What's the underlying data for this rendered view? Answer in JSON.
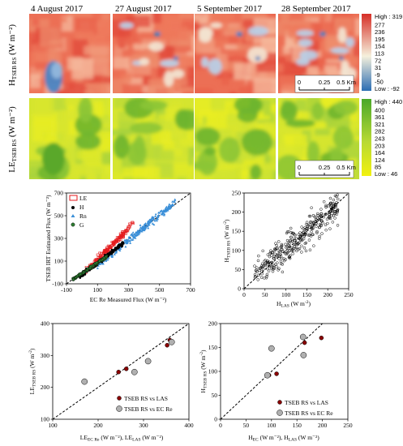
{
  "maps": {
    "dates": [
      "4 August 2017",
      "27 August 2017",
      "5 September 2017",
      "28 September 2017"
    ],
    "rows": [
      {
        "label_main": "H",
        "label_sub": "TSEB RS",
        "label_unit": " (W m⁻²)",
        "high_label": "High : 319",
        "low_label": "Low : -92",
        "ticks": [
          "277",
          "236",
          "195",
          "154",
          "113",
          "72",
          "31",
          "-9",
          "-50"
        ],
        "colors": [
          "#2b6db3",
          "#f5f0dc",
          "#d62f27"
        ]
      },
      {
        "label_main": "LE",
        "label_sub": "TSEB RS",
        "label_unit": " (W m⁻²)",
        "high_label": "High : 440",
        "low_label": "Low : 46",
        "ticks": [
          "400",
          "361",
          "321",
          "282",
          "243",
          "203",
          "164",
          "124",
          "85"
        ],
        "colors": [
          "#f2f10f",
          "#b7d934",
          "#4aa82a"
        ]
      }
    ],
    "scale_ticks": [
      "0",
      "0.25",
      "0.5 Km"
    ]
  },
  "chart_data": [
    {
      "type": "scatter",
      "xlabel": "EC Re Measured Flux (W m⁻²)",
      "ylabel": "TSEB IRT Estimated Flux (W m⁻²)",
      "xlim": [
        -100,
        700
      ],
      "ylim": [
        -100,
        700
      ],
      "xticks": [
        "-100",
        "100",
        "300",
        "500",
        "700"
      ],
      "yticks": [
        "-100",
        "100",
        "300",
        "500",
        "700"
      ],
      "legend": [
        "LE",
        "H",
        "Rn",
        "G"
      ],
      "legend_position": "top-left",
      "series_colors": {
        "LE": "#e41a1c",
        "H": "#000000",
        "Rn": "#3a8fd8",
        "G": "#2e7d32"
      },
      "one_to_one_line": true,
      "series_ranges": {
        "LE": {
          "x": [
            20,
            330
          ],
          "y": [
            0,
            430
          ]
        },
        "H": {
          "x": [
            -20,
            270
          ],
          "y": [
            -40,
            260
          ]
        },
        "Rn": {
          "x": [
            100,
            600
          ],
          "y": [
            60,
            620
          ]
        },
        "G": {
          "x": [
            -60,
            160
          ],
          "y": [
            -60,
            140
          ]
        }
      }
    },
    {
      "type": "scatter",
      "xlabel": "H_LAS (W m⁻²)",
      "ylabel": "H_TSEB RS (W m⁻²)",
      "xlim": [
        0,
        250
      ],
      "ylim": [
        0,
        250
      ],
      "xticks": [
        "0",
        "50",
        "100",
        "150",
        "200",
        "250"
      ],
      "yticks": [
        "0",
        "50",
        "100",
        "150",
        "200",
        "250"
      ],
      "marker": "open circle",
      "one_to_one_line": true,
      "point_count": 330
    },
    {
      "type": "scatter",
      "xlabel_main": "LE",
      "xlabel_sub1": "EC Re",
      "xlabel_mid": " (W m⁻²), LE",
      "xlabel_sub2": "LAS",
      "xlabel_end": " (W m⁻²)",
      "ylabel": "LE_TSEB RS (W m⁻²)",
      "xlim": [
        100,
        400
      ],
      "ylim": [
        100,
        400
      ],
      "xticks": [
        "100",
        "200",
        "300",
        "400"
      ],
      "yticks": [
        "100",
        "200",
        "300",
        "400"
      ],
      "one_to_one_line": true,
      "series": [
        {
          "name": "TSEB RS vs LAS",
          "color": "#8b0000",
          "points": [
            [
              245,
              248
            ],
            [
              262,
              258
            ],
            [
              352,
              332
            ],
            [
              358,
              348
            ]
          ]
        },
        {
          "name": "TSEB RS vs EC Re",
          "color": "#b0b0b0",
          "points": [
            [
              170,
              218
            ],
            [
              280,
              248
            ],
            [
              310,
              282
            ],
            [
              362,
              342
            ]
          ]
        }
      ]
    },
    {
      "type": "scatter",
      "xlabel_main": "H",
      "xlabel_sub1": "EC",
      "xlabel_mid": " (W m⁻²), H",
      "xlabel_sub2": "LAS",
      "xlabel_end": " (W m⁻²)",
      "ylabel": "H_TSEB RS (W m⁻²)",
      "xlim": [
        0,
        250
      ],
      "ylim": [
        0,
        200
      ],
      "xticks": [
        "0",
        "50",
        "100",
        "150",
        "200",
        "250"
      ],
      "yticks": [
        "0",
        "50",
        "100",
        "150",
        "200"
      ],
      "one_to_one_line": true,
      "series": [
        {
          "name": "TSEB RS vs LAS",
          "color": "#8b0000",
          "points": [
            [
              95,
              92
            ],
            [
              110,
              95
            ],
            [
              165,
              160
            ],
            [
              198,
              170
            ]
          ]
        },
        {
          "name": "TSEB RS vs EC Re",
          "color": "#b0b0b0",
          "points": [
            [
              92,
              92
            ],
            [
              100,
              148
            ],
            [
              162,
              172
            ],
            [
              163,
              134
            ]
          ]
        }
      ]
    }
  ]
}
